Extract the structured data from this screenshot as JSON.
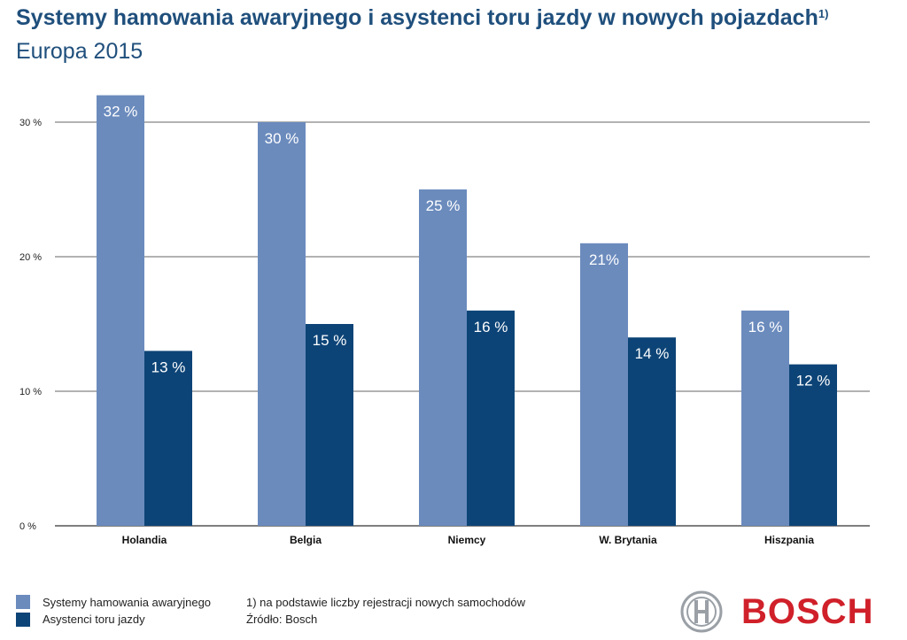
{
  "header": {
    "title": "Systemy hamowania awaryjnego i asystenci toru jazdy w nowych pojazdach",
    "title_sup": "1)",
    "subtitle": "Europa 2015"
  },
  "chart_data": {
    "type": "bar",
    "categories": [
      "Holandia",
      "Belgia",
      "Niemcy",
      "W. Brytania",
      "Hiszpania"
    ],
    "series": [
      {
        "name": "Systemy hamowania awaryjnego",
        "values": [
          32,
          30,
          25,
          21,
          16
        ],
        "labels": [
          "32 %",
          "30 %",
          "25 %",
          "21%",
          "16 %"
        ],
        "color": "#6b8bbd"
      },
      {
        "name": "Asystenci toru jazdy",
        "values": [
          13,
          15,
          16,
          14,
          12
        ],
        "labels": [
          "13 %",
          "15 %",
          "16 %",
          "14 %",
          "12 %"
        ],
        "color": "#0d4477"
      }
    ],
    "ylim": [
      0,
      32
    ],
    "yticks": [
      0,
      10,
      20,
      30
    ],
    "ytick_labels": [
      "0 %",
      "10 %",
      "20 %",
      "30 %"
    ],
    "grid": true,
    "legend_position": "bottom-left"
  },
  "footer": {
    "note": "1) na podstawie liczby rejestracji nowych samochodów",
    "source": "Źródło: Bosch",
    "brand": "BOSCH"
  }
}
